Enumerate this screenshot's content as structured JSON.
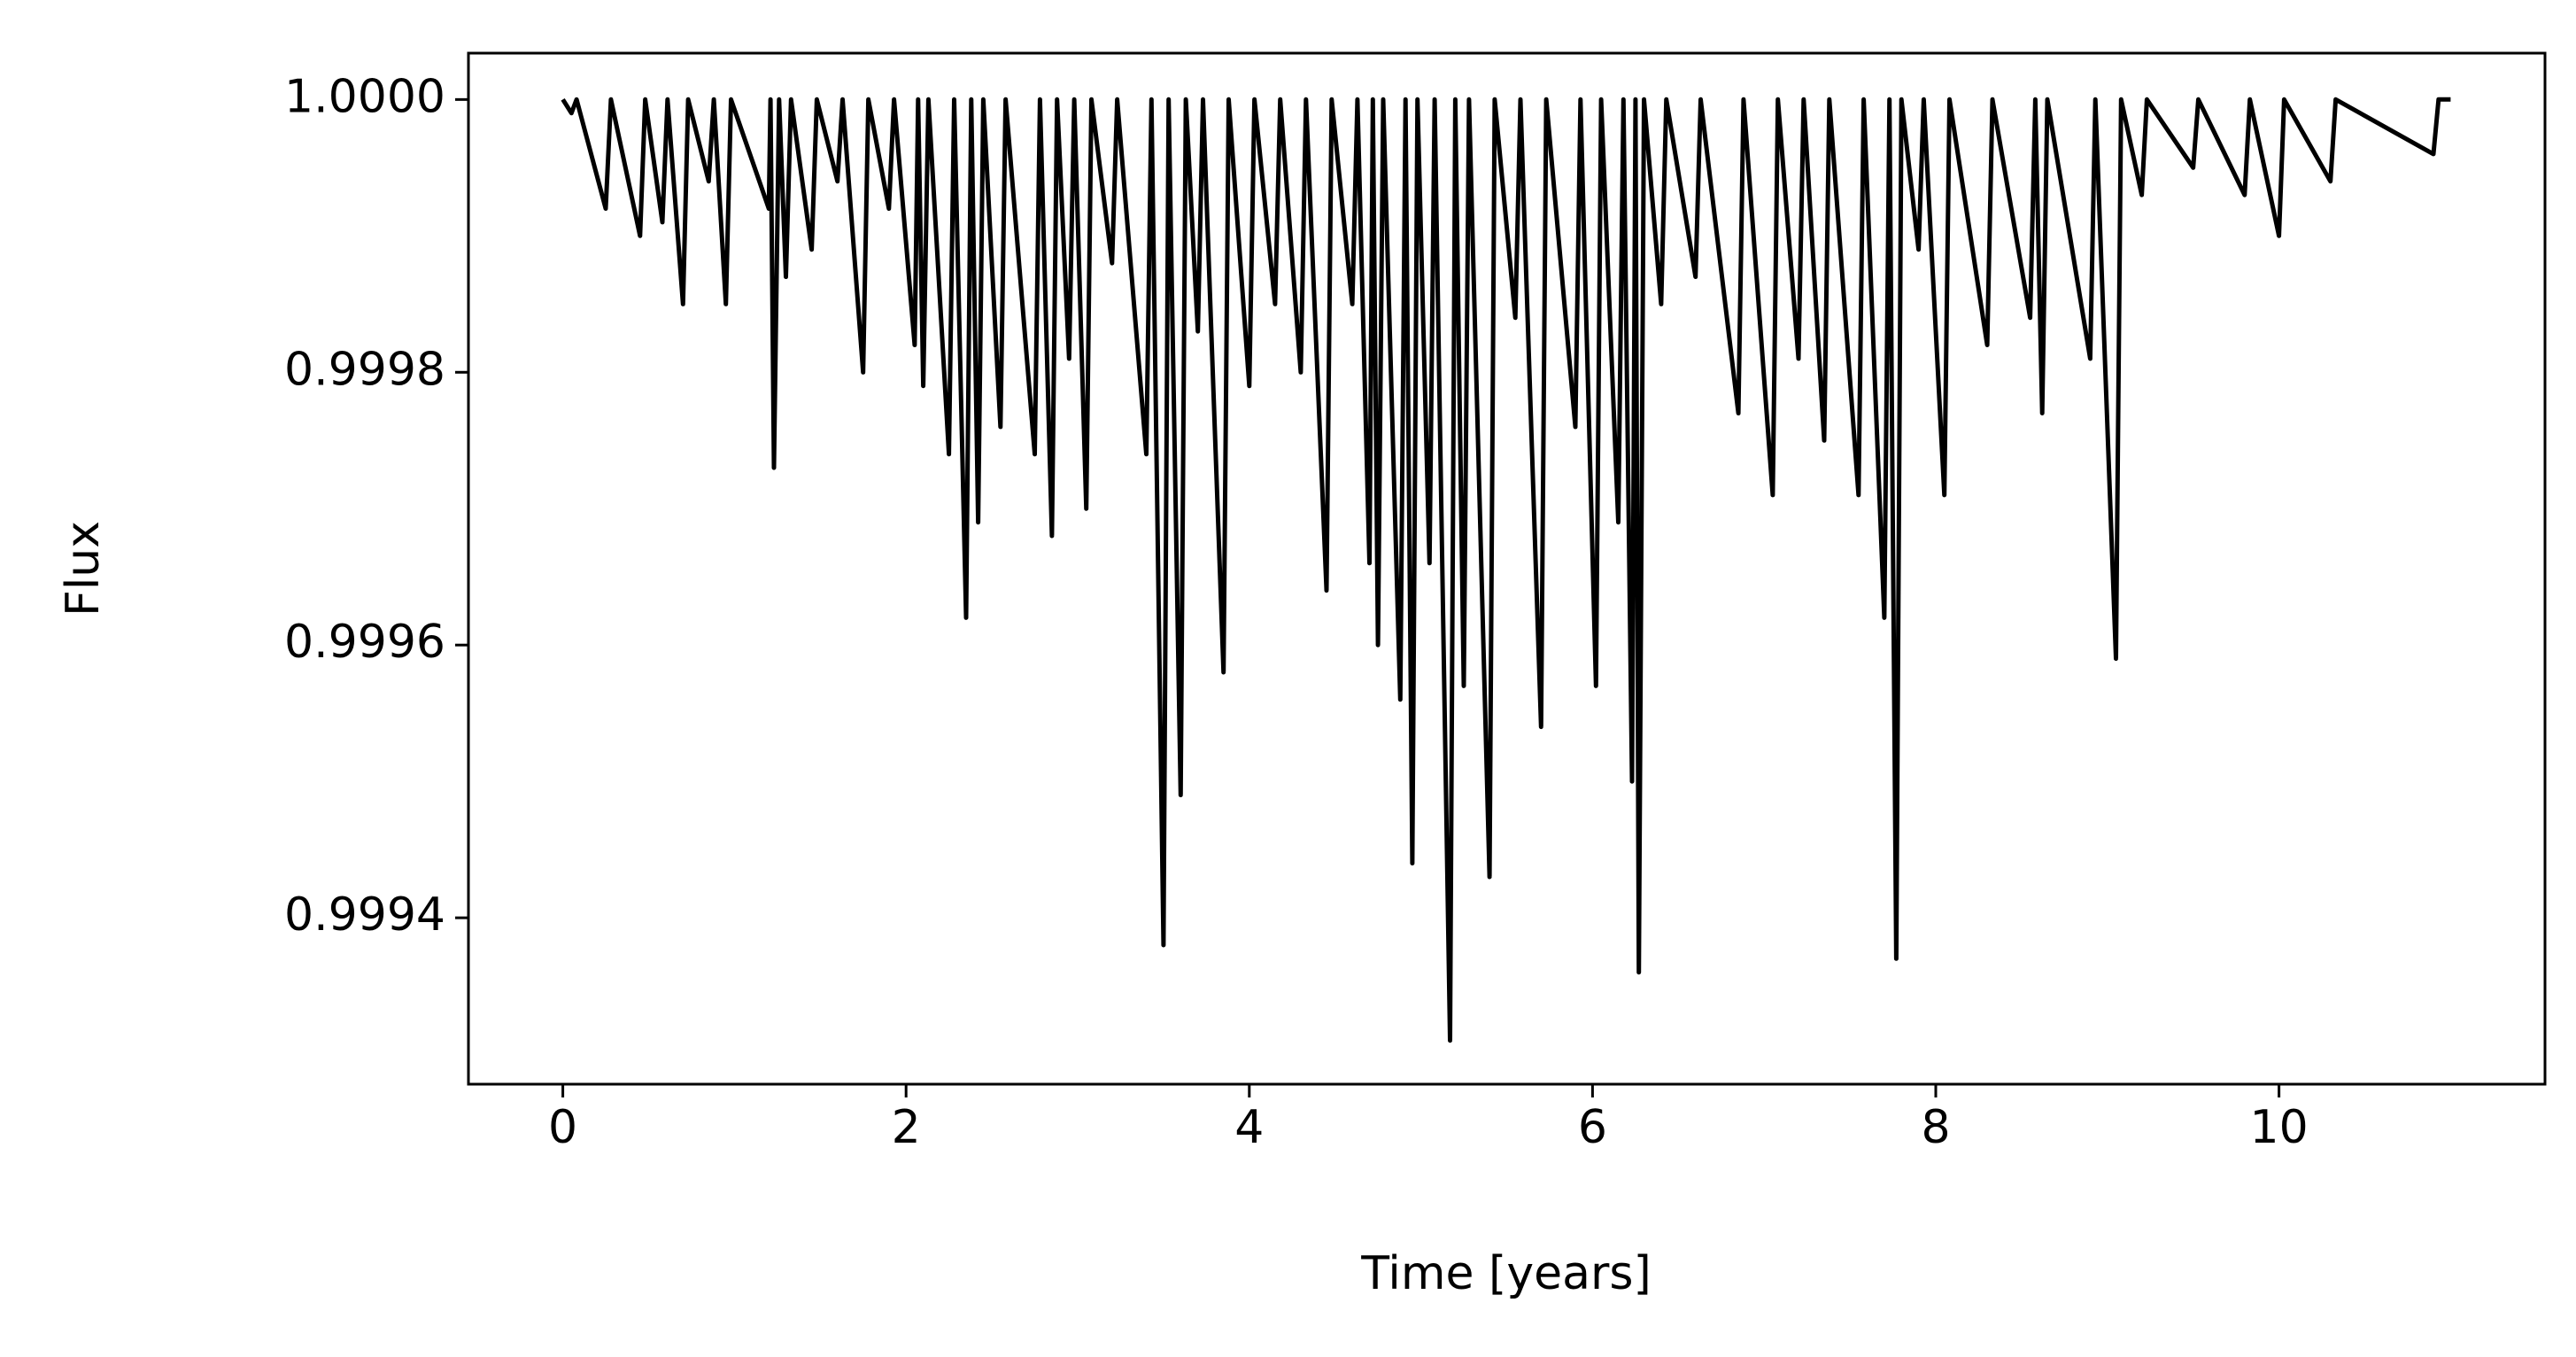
{
  "chart_data": {
    "type": "line",
    "xlabel": "Time [years]",
    "ylabel": "Flux",
    "xlim": [
      -0.55,
      11.55
    ],
    "xticks": [
      0,
      2,
      4,
      6,
      8,
      10
    ],
    "ylim": [
      0.999278,
      1.000034
    ],
    "yticks": [
      {
        "value": 0.9994,
        "label": "0.9994"
      },
      {
        "value": 0.9996,
        "label": "0.9996"
      },
      {
        "value": 0.9998,
        "label": "0.9998"
      },
      {
        "value": 1,
        "label": "1.0000"
      }
    ],
    "series": [
      {
        "name": "Flux",
        "color": "#000000",
        "x": [
          0,
          0.05,
          0.08,
          0.25,
          0.28,
          0.45,
          0.48,
          0.58,
          0.61,
          0.7,
          0.73,
          0.85,
          0.88,
          0.95,
          0.98,
          1.2,
          1.21,
          1.23,
          1.26,
          1.3,
          1.33,
          1.45,
          1.48,
          1.6,
          1.63,
          1.75,
          1.78,
          1.9,
          1.93,
          2.05,
          2.07,
          2.1,
          2.13,
          2.25,
          2.28,
          2.35,
          2.38,
          2.42,
          2.45,
          2.55,
          2.58,
          2.75,
          2.78,
          2.85,
          2.88,
          2.95,
          2.98,
          3.05,
          3.08,
          3.2,
          3.23,
          3.4,
          3.43,
          3.5,
          3.53,
          3.6,
          3.63,
          3.7,
          3.73,
          3.85,
          3.88,
          4.0,
          4.03,
          4.15,
          4.18,
          4.3,
          4.33,
          4.45,
          4.48,
          4.6,
          4.63,
          4.7,
          4.72,
          4.75,
          4.78,
          4.88,
          4.91,
          4.95,
          4.98,
          5.05,
          5.08,
          5.17,
          5.2,
          5.25,
          5.28,
          5.4,
          5.43,
          5.55,
          5.58,
          5.7,
          5.73,
          5.9,
          5.93,
          6.02,
          6.05,
          6.15,
          6.18,
          6.23,
          6.25,
          6.27,
          6.3,
          6.4,
          6.43,
          6.6,
          6.63,
          6.85,
          6.88,
          7.05,
          7.08,
          7.2,
          7.23,
          7.35,
          7.38,
          7.55,
          7.58,
          7.7,
          7.73,
          7.77,
          7.8,
          7.9,
          7.93,
          8.05,
          8.08,
          8.3,
          8.33,
          8.55,
          8.58,
          8.62,
          8.65,
          8.9,
          8.93,
          9.05,
          9.08,
          9.2,
          9.23,
          9.5,
          9.53,
          9.8,
          9.83,
          10.0,
          10.03,
          10.3,
          10.33,
          10.9,
          10.93,
          11.0
        ],
        "values": [
          1,
          0.99999,
          1,
          0.99992,
          1,
          0.9999,
          1,
          0.99991,
          1,
          0.99985,
          1,
          0.99994,
          1,
          0.99985,
          1,
          0.99992,
          1,
          0.99973,
          1,
          0.99987,
          1,
          0.99989,
          1,
          0.99994,
          1,
          0.9998,
          1,
          0.99992,
          1,
          0.99982,
          1,
          0.99979,
          1,
          0.99974,
          1,
          0.99962,
          1,
          0.99969,
          1,
          0.99976,
          1,
          0.99974,
          1,
          0.99968,
          1,
          0.99981,
          1,
          0.9997,
          1,
          0.99988,
          1,
          0.99974,
          1,
          0.99938,
          1,
          0.99949,
          1,
          0.99983,
          1,
          0.99958,
          1,
          0.99979,
          1,
          0.99985,
          1,
          0.9998,
          1,
          0.99964,
          1,
          0.99985,
          1,
          0.99966,
          1,
          0.9996,
          1,
          0.99956,
          1,
          0.99944,
          1,
          0.99966,
          1,
          0.99931,
          1,
          0.99957,
          1,
          0.99943,
          1,
          0.99984,
          1,
          0.99954,
          1,
          0.99976,
          1,
          0.99957,
          1,
          0.99969,
          1,
          0.9995,
          1,
          0.99936,
          1,
          0.99985,
          1,
          0.99987,
          1,
          0.99977,
          1,
          0.99971,
          1,
          0.99981,
          1,
          0.99975,
          1,
          0.99971,
          1,
          0.99962,
          1,
          0.99937,
          1,
          0.99989,
          1,
          0.99971,
          1,
          0.99982,
          1,
          0.99984,
          1,
          0.99977,
          1,
          0.99981,
          1,
          0.99959,
          1,
          0.99993,
          1,
          0.99995,
          1,
          0.99993,
          1,
          0.9999,
          1,
          0.99994,
          1,
          0.99996,
          1,
          1
        ]
      }
    ]
  }
}
